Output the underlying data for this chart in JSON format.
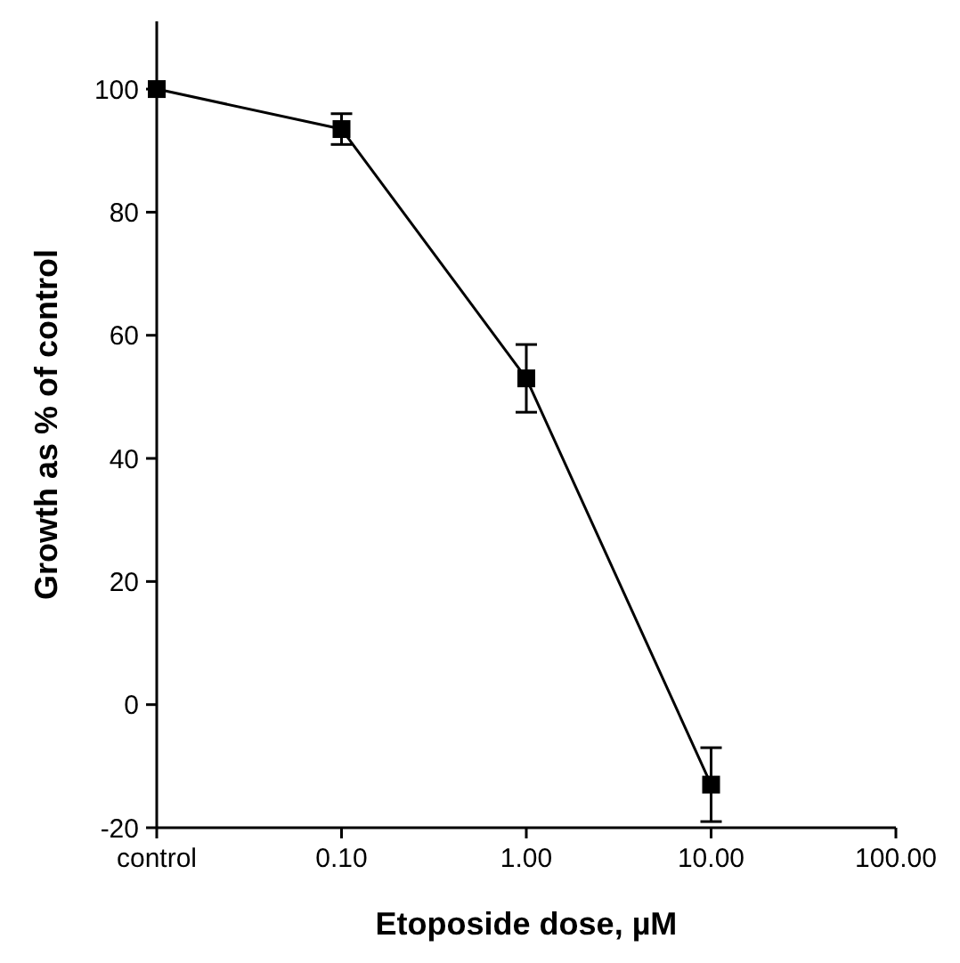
{
  "chart_data": {
    "type": "line",
    "xlabel": "Etoposide dose, µM",
    "ylabel": "Growth as % of control",
    "categories": [
      "control",
      "0.10",
      "1.00",
      "10.00",
      "100.00"
    ],
    "series": [
      {
        "color": "#000000",
        "values": [
          100,
          93.5,
          53,
          -13,
          null
        ],
        "errors": [
          null,
          2.5,
          5.5,
          6,
          null
        ]
      }
    ],
    "ylim": [
      -20,
      111
    ],
    "yticks": [
      -20,
      0,
      20,
      40,
      60,
      80,
      100
    ],
    "grid": false,
    "marker": "square",
    "line_style": "solid"
  }
}
